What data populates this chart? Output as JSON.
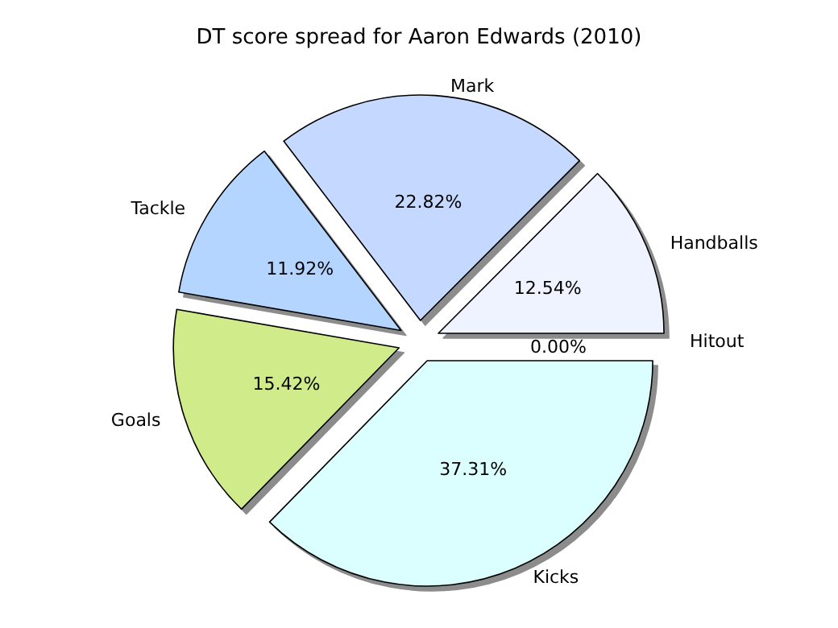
{
  "chart_data": {
    "type": "pie",
    "title": "DT score spread for Aaron Edwards (2010)",
    "categories": [
      "Hitout",
      "Handballs",
      "Mark",
      "Tackle",
      "Goals",
      "Kicks"
    ],
    "values": [
      0,
      12.54,
      22.82,
      11.92,
      15.42,
      37.31
    ],
    "value_labels": [
      "0.00%",
      "12.54%",
      "22.82%",
      "11.92%",
      "15.42%",
      "37.31%"
    ],
    "colors": [
      "#f4f4ff",
      "#eef3ff",
      "#c5d8ff",
      "#b4d5ff",
      "#d0ec8a",
      "#dbffff"
    ],
    "legend": false
  }
}
